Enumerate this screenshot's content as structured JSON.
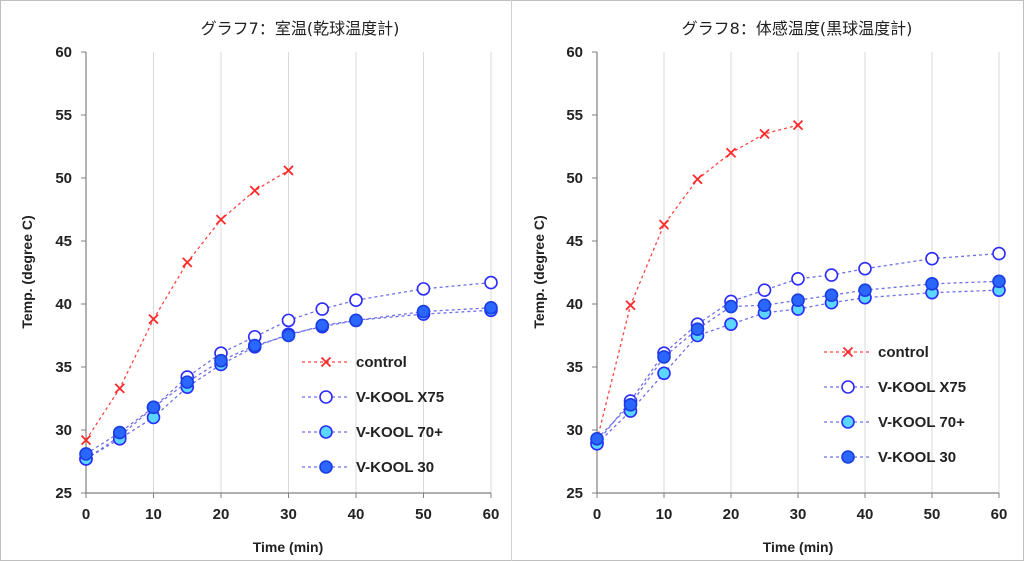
{
  "chart_data": [
    {
      "type": "line",
      "title": "グラフ7：室温(乾球温度計)",
      "xlabel": "Time (min)",
      "ylabel": "Temp. (degree C)",
      "xlim": [
        0,
        60
      ],
      "ylim": [
        25,
        60
      ],
      "xticks": [
        0,
        10,
        20,
        30,
        40,
        50,
        60
      ],
      "yticks": [
        25,
        30,
        35,
        40,
        45,
        50,
        55,
        60
      ],
      "grid": "vertical",
      "legend_position": "bottom-right",
      "series": [
        {
          "name": "control",
          "marker": "x",
          "color": "#ff2a2a",
          "x": [
            0,
            5,
            10,
            15,
            20,
            25,
            30
          ],
          "y": [
            29.2,
            33.3,
            38.8,
            43.3,
            46.7,
            49.0,
            50.6
          ]
        },
        {
          "name": "V-KOOL X75",
          "marker": "circle-open",
          "color": "#3333ff",
          "x": [
            0,
            5,
            10,
            15,
            20,
            25,
            30,
            35,
            40,
            50,
            60
          ],
          "y": [
            27.7,
            29.5,
            31.8,
            34.2,
            36.1,
            37.4,
            38.7,
            39.6,
            40.3,
            41.2,
            41.7
          ]
        },
        {
          "name": "V-KOOL 70+",
          "marker": "circle-light",
          "color": "#5bd6ff",
          "x": [
            0,
            5,
            10,
            15,
            20,
            25,
            30,
            35,
            40,
            50,
            60
          ],
          "y": [
            27.7,
            29.3,
            31.0,
            33.4,
            35.2,
            36.6,
            37.6,
            38.2,
            38.7,
            39.2,
            39.5
          ]
        },
        {
          "name": "V-KOOL 30",
          "marker": "circle-filled",
          "color": "#2a66ff",
          "x": [
            0,
            5,
            10,
            15,
            20,
            25,
            30,
            35,
            40,
            50,
            60
          ],
          "y": [
            28.1,
            29.8,
            31.8,
            33.8,
            35.5,
            36.7,
            37.5,
            38.3,
            38.7,
            39.4,
            39.7
          ]
        }
      ]
    },
    {
      "type": "line",
      "title": "グラフ8：体感温度(黒球温度計)",
      "xlabel": "Time (min)",
      "ylabel": "Temp. (degree C)",
      "xlim": [
        0,
        60
      ],
      "ylim": [
        25,
        60
      ],
      "xticks": [
        0,
        10,
        20,
        30,
        40,
        50,
        60
      ],
      "yticks": [
        25,
        30,
        35,
        40,
        45,
        50,
        55,
        60
      ],
      "grid": "vertical",
      "legend_position": "bottom-right",
      "series": [
        {
          "name": "control",
          "marker": "x",
          "color": "#ff2a2a",
          "x": [
            0,
            5,
            10,
            15,
            20,
            25,
            30
          ],
          "y": [
            29.2,
            39.9,
            46.3,
            49.9,
            52.0,
            53.5,
            54.2
          ]
        },
        {
          "name": "V-KOOL X75",
          "marker": "circle-open",
          "color": "#3333ff",
          "x": [
            0,
            5,
            10,
            15,
            20,
            25,
            30,
            35,
            40,
            50,
            60
          ],
          "y": [
            29.0,
            32.3,
            36.1,
            38.4,
            40.2,
            41.1,
            42.0,
            42.3,
            42.8,
            43.6,
            44.0
          ]
        },
        {
          "name": "V-KOOL 70+",
          "marker": "circle-light",
          "color": "#5bd6ff",
          "x": [
            0,
            5,
            10,
            15,
            20,
            25,
            30,
            35,
            40,
            50,
            60
          ],
          "y": [
            28.9,
            31.5,
            34.5,
            37.5,
            38.4,
            39.3,
            39.6,
            40.1,
            40.5,
            40.9,
            41.1
          ]
        },
        {
          "name": "V-KOOL 30",
          "marker": "circle-filled",
          "color": "#2a66ff",
          "x": [
            0,
            5,
            10,
            15,
            20,
            25,
            30,
            35,
            40,
            50,
            60
          ],
          "y": [
            29.3,
            32.0,
            35.8,
            38.0,
            39.8,
            39.9,
            40.3,
            40.7,
            41.1,
            41.6,
            41.8
          ]
        }
      ]
    }
  ]
}
